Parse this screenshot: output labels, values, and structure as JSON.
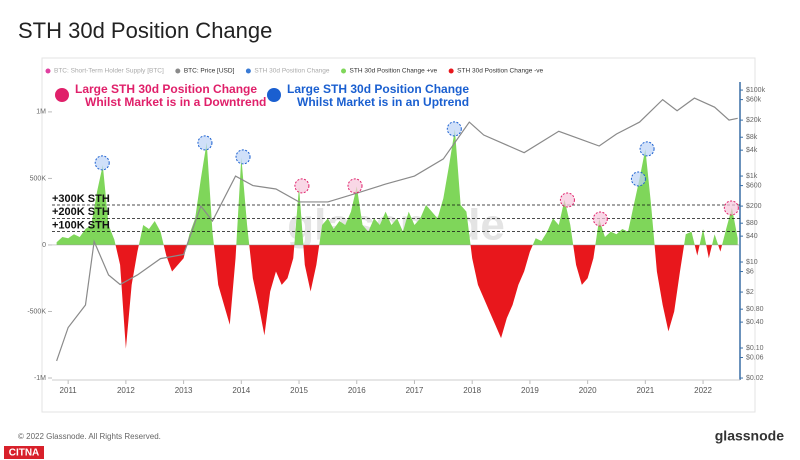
{
  "chart_data": {
    "type": "area",
    "title": "STH 30d Position Change",
    "legend": [
      {
        "name": "BTC: Short-Term Holder Supply [BTC]",
        "color": "#e040a0",
        "active": false
      },
      {
        "name": "BTC: Price [USD]",
        "color": "#8a8a8a",
        "active": true
      },
      {
        "name": "STH 30d Position Change",
        "color": "#3a7bd5",
        "active": false
      },
      {
        "name": "STH 30d Position Change +ve",
        "color": "#7fd65a",
        "active": true
      },
      {
        "name": "STH 30d Position Change -ve",
        "color": "#e8171c",
        "active": true
      }
    ],
    "series": [
      {
        "kind": "line",
        "axis": "y2",
        "color": "#8a8a8a",
        "x": [
          2010.8,
          2011.0,
          2011.3,
          2011.45,
          2011.7,
          2011.9,
          2012.2,
          2012.6,
          2013.0,
          2013.3,
          2013.5,
          2013.9,
          2014.2,
          2014.6,
          2015.0,
          2015.5,
          2016.0,
          2016.5,
          2017.0,
          2017.5,
          2017.95,
          2018.2,
          2018.9,
          2019.5,
          2019.9,
          2020.2,
          2020.5,
          2020.9,
          2021.3,
          2021.55,
          2021.85,
          2022.2,
          2022.45,
          2022.6
        ],
        "values": [
          0.05,
          0.3,
          1,
          30,
          5,
          3,
          5,
          12,
          15,
          200,
          90,
          1000,
          600,
          500,
          250,
          250,
          400,
          650,
          1000,
          2500,
          18000,
          9000,
          3500,
          11000,
          7000,
          5000,
          9500,
          18000,
          60000,
          33000,
          65000,
          40000,
          20000,
          22000
        ]
      },
      {
        "kind": "area",
        "positive_color": "#7fd65a",
        "negative_color": "#e8171c",
        "x": [
          2010.8,
          2010.9,
          2011.0,
          2011.1,
          2011.2,
          2011.3,
          2011.4,
          2011.5,
          2011.6,
          2011.7,
          2011.8,
          2011.9,
          2012.0,
          2012.1,
          2012.2,
          2012.3,
          2012.4,
          2012.5,
          2012.6,
          2012.7,
          2012.8,
          2012.9,
          2013.0,
          2013.1,
          2013.2,
          2013.3,
          2013.4,
          2013.5,
          2013.6,
          2013.7,
          2013.8,
          2013.9,
          2014.0,
          2014.1,
          2014.2,
          2014.3,
          2014.4,
          2014.5,
          2014.6,
          2014.7,
          2014.8,
          2014.9,
          2015.0,
          2015.1,
          2015.2,
          2015.3,
          2015.4,
          2015.5,
          2015.6,
          2015.7,
          2015.8,
          2015.9,
          2016.0,
          2016.1,
          2016.2,
          2016.3,
          2016.4,
          2016.5,
          2016.6,
          2016.7,
          2016.8,
          2016.9,
          2017.0,
          2017.1,
          2017.2,
          2017.3,
          2017.4,
          2017.5,
          2017.6,
          2017.7,
          2017.8,
          2017.9,
          2018.0,
          2018.1,
          2018.2,
          2018.3,
          2018.4,
          2018.5,
          2018.6,
          2018.7,
          2018.8,
          2018.9,
          2019.0,
          2019.1,
          2019.2,
          2019.3,
          2019.4,
          2019.5,
          2019.6,
          2019.7,
          2019.8,
          2019.9,
          2020.0,
          2020.1,
          2020.2,
          2020.3,
          2020.4,
          2020.5,
          2020.6,
          2020.7,
          2020.8,
          2020.9,
          2021.0,
          2021.1,
          2021.2,
          2021.3,
          2021.4,
          2021.5,
          2021.6,
          2021.7,
          2021.8,
          2021.9,
          2022.0,
          2022.1,
          2022.2,
          2022.3,
          2022.4,
          2022.5,
          2022.6
        ],
        "values": [
          20000,
          60000,
          50000,
          80000,
          60000,
          120000,
          150000,
          400000,
          600000,
          150000,
          40000,
          -150000,
          -780000,
          -300000,
          -50000,
          150000,
          120000,
          180000,
          100000,
          -80000,
          -200000,
          -150000,
          -100000,
          80000,
          200000,
          500000,
          770000,
          100000,
          -300000,
          -450000,
          -600000,
          -100000,
          660000,
          150000,
          -250000,
          -450000,
          -680000,
          -350000,
          -200000,
          -300000,
          -250000,
          -100000,
          440000,
          -150000,
          -350000,
          -150000,
          150000,
          200000,
          120000,
          180000,
          150000,
          250000,
          440000,
          150000,
          100000,
          200000,
          150000,
          250000,
          150000,
          200000,
          100000,
          250000,
          150000,
          200000,
          300000,
          250000,
          200000,
          350000,
          600000,
          870000,
          300000,
          250000,
          -100000,
          -300000,
          -400000,
          -500000,
          -600000,
          -700000,
          -550000,
          -450000,
          -300000,
          -200000,
          -50000,
          50000,
          30000,
          100000,
          200000,
          150000,
          340000,
          150000,
          -150000,
          -300000,
          -250000,
          -100000,
          195000,
          60000,
          100000,
          80000,
          120000,
          100000,
          300000,
          500000,
          720000,
          300000,
          -200000,
          -450000,
          -650000,
          -500000,
          -200000,
          80000,
          100000,
          -80000,
          120000,
          -100000,
          80000,
          -50000,
          120000,
          280000,
          50000
        ]
      }
    ],
    "xlim": [
      2010.72,
      2022.64
    ],
    "xticks": [
      2011,
      2012,
      2013,
      2014,
      2015,
      2016,
      2017,
      2018,
      2019,
      2020,
      2021,
      2022
    ],
    "ylim": [
      -1015000,
      1375000
    ],
    "yticks": [
      {
        "value": -1000000,
        "label": "-1M"
      },
      {
        "value": -500000,
        "label": "-500K"
      },
      0,
      {
        "value": 500000,
        "label": "500K"
      },
      {
        "value": 1000000,
        "label": "1M"
      }
    ],
    "y2_log": true,
    "y2lim": [
      0.018,
      450000
    ],
    "y2ticks": [
      {
        "value": 0.02,
        "label": "$0.02"
      },
      {
        "value": 0.06,
        "label": "$0.06"
      },
      {
        "value": 0.1,
        "label": "$0.10"
      },
      {
        "value": 0.4,
        "label": "$0.40"
      },
      {
        "value": 0.8,
        "label": "$0.80"
      },
      {
        "value": 2,
        "label": "$2"
      },
      {
        "value": 6,
        "label": "$6"
      },
      {
        "value": 10,
        "label": "$10"
      },
      {
        "value": 40,
        "label": "$40"
      },
      {
        "value": 80,
        "label": "$80"
      },
      {
        "value": 200,
        "label": "$200"
      },
      {
        "value": 600,
        "label": "$600"
      },
      {
        "value": 1000,
        "label": "$1k"
      },
      {
        "value": 4000,
        "label": "$4k"
      },
      {
        "value": 8000,
        "label": "$8k"
      },
      {
        "value": 20000,
        "label": "$20k"
      },
      {
        "value": 60000,
        "label": "$60k"
      },
      {
        "value": 100000,
        "label": "$100k"
      }
    ],
    "reference_lines": [
      {
        "value": 300000,
        "label": "+300K STH"
      },
      {
        "value": 200000,
        "label": "+200K STH"
      },
      {
        "value": 100000,
        "label": "+100K STH"
      }
    ],
    "annotations": [
      {
        "lines": [
          "Large STH 30d Position Change",
          "Whilst Market is in a Downtrend"
        ],
        "color": "#e0206a",
        "fill": "#f7c6dc",
        "points": [
          {
            "x": 2015.05,
            "value": 444000
          },
          {
            "x": 2015.97,
            "value": 444000
          },
          {
            "x": 2019.65,
            "value": 338000
          },
          {
            "x": 2020.22,
            "value": 195000
          },
          {
            "x": 2022.49,
            "value": 278000
          }
        ]
      },
      {
        "lines": [
          "Large STH 30d Position Change",
          "Whilst Market is in an Uptrend"
        ],
        "color": "#1a5fd0",
        "fill": "#bcd3f7",
        "points": [
          {
            "x": 2011.59,
            "value": 617000
          },
          {
            "x": 2013.37,
            "value": 767000
          },
          {
            "x": 2014.03,
            "value": 662000
          },
          {
            "x": 2017.69,
            "value": 872000
          },
          {
            "x": 2020.88,
            "value": 496000
          },
          {
            "x": 2021.03,
            "value": 722000
          }
        ]
      }
    ],
    "watermark": "glassnode",
    "footer": "© 2022 Glassnode. All Rights Reserved.",
    "brand": "glassnode",
    "corner_logo": "CITNA"
  }
}
